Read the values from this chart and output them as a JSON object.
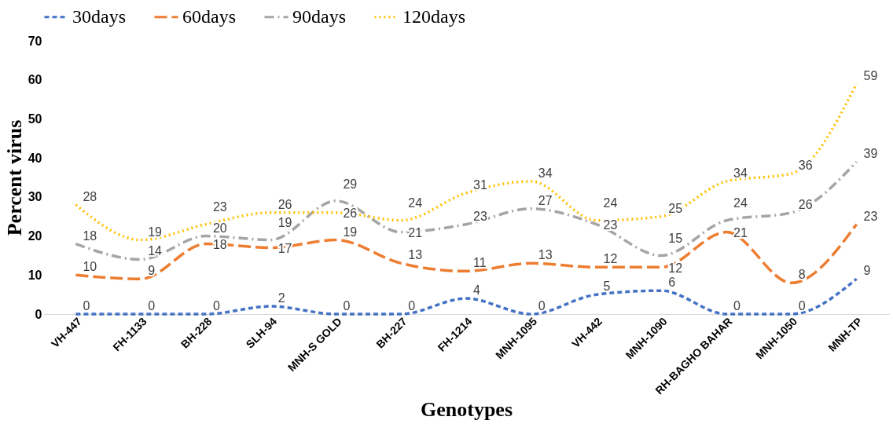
{
  "chart_data": {
    "type": "line",
    "xlabel": "Genotypes",
    "ylabel": "Percent virus",
    "categories": [
      "VH-447",
      "FH-1133",
      "BH-228",
      "SLH-94",
      "MNH-S GOLD",
      "BH-227",
      "FH-1214",
      "MNH-1095",
      "VH-442",
      "MNH-1090",
      "RH-BAGHO BAHAR",
      "MNH-1050",
      "MNH-TP"
    ],
    "series": [
      {
        "name": "30days",
        "color": "#4472c4",
        "line_style": "dashed",
        "values": [
          0,
          0,
          0,
          2,
          0,
          0,
          4,
          0,
          5,
          6,
          0,
          0,
          9
        ]
      },
      {
        "name": "60days",
        "color": "#ed7d31",
        "line_style": "longdash",
        "values": [
          10,
          9,
          18,
          17,
          19,
          13,
          11,
          13,
          12,
          12,
          21,
          8,
          23
        ]
      },
      {
        "name": "90days",
        "color": "#a5a5a5",
        "line_style": "dashdot",
        "values": [
          18,
          14,
          20,
          19,
          29,
          21,
          23,
          27,
          23,
          15,
          24,
          26,
          39
        ]
      },
      {
        "name": "120days",
        "color": "#ffc000",
        "line_style": "dotted",
        "values": [
          28,
          19,
          23,
          26,
          26,
          24,
          31,
          34,
          24,
          25,
          34,
          36,
          59
        ]
      }
    ],
    "ylim": [
      0,
      70
    ],
    "yticks": [
      0,
      10,
      20,
      30,
      40,
      50,
      60,
      70
    ],
    "grid": false,
    "legend": "top",
    "data_labels": true,
    "marker": "none"
  }
}
